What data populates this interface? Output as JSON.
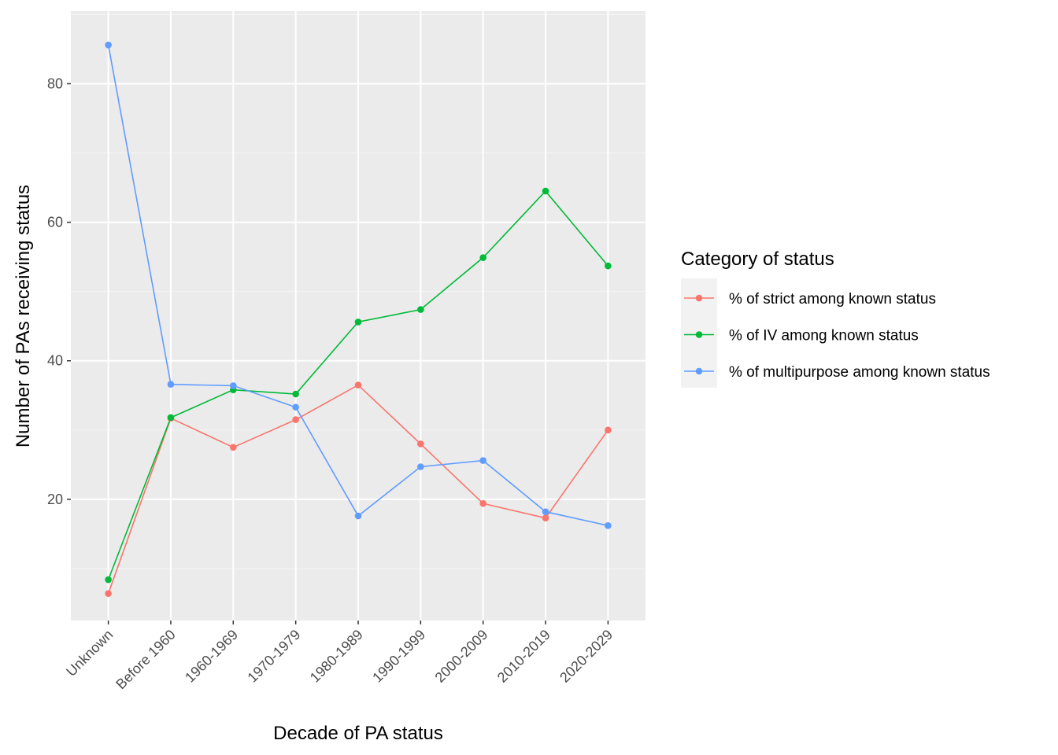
{
  "chart_data": {
    "type": "line",
    "title": "",
    "xlabel": "Decade of PA status",
    "ylabel": "Number of PAs receiving status",
    "categories": [
      "Unknown",
      "Before 1960",
      "1960-1969",
      "1970-1979",
      "1980-1989",
      "1990-1999",
      "2000-2009",
      "2010-2019",
      "2020-2029"
    ],
    "ylim": [
      2.5,
      90.5
    ],
    "yticks": [
      20,
      40,
      60,
      80
    ],
    "grid": true,
    "legend": {
      "title": "Category of status",
      "position": "right"
    },
    "series": [
      {
        "name": "% of strict among known status",
        "color": "#F8766D",
        "values": [
          6.4,
          31.7,
          27.5,
          31.5,
          36.5,
          28.0,
          19.4,
          17.3,
          30.0
        ]
      },
      {
        "name": "% of IV among known status",
        "color": "#00BA38",
        "values": [
          8.4,
          31.8,
          35.8,
          35.2,
          45.6,
          47.4,
          54.9,
          64.5,
          53.7
        ]
      },
      {
        "name": "% of multipurpose among known status",
        "color": "#619CFF",
        "values": [
          85.6,
          36.6,
          36.4,
          33.3,
          17.6,
          24.7,
          25.6,
          18.2,
          16.2
        ]
      }
    ]
  }
}
